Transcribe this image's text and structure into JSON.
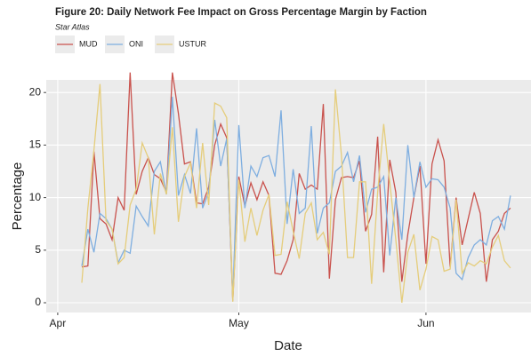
{
  "chart_data": {
    "type": "line",
    "title": "Figure 20: Daily Network Fee Impact on Gross Percentage Margin by Faction",
    "subtitle": "Star Atlas",
    "x_label": "Date",
    "y_label": "Percentage",
    "x": [
      4,
      5,
      6,
      7,
      8,
      9,
      10,
      11,
      12,
      13,
      14,
      15,
      16,
      17,
      18,
      19,
      20,
      21,
      22,
      23,
      24,
      25,
      26,
      27,
      28,
      29,
      30,
      31,
      32,
      33,
      34,
      35,
      36,
      37,
      38,
      39,
      40,
      41,
      42,
      43,
      44,
      45,
      46,
      47,
      48,
      49,
      50,
      51,
      52,
      53,
      54,
      55,
      56,
      57,
      58,
      59,
      60,
      61,
      62,
      63,
      64,
      65,
      66,
      67,
      68,
      69,
      70,
      71,
      72,
      73,
      74,
      75
    ],
    "series": [
      {
        "name": "MUD",
        "color": "#c9524d",
        "values": [
          3.4,
          3.5,
          14.4,
          8,
          7.5,
          6,
          10,
          8.8,
          21.9,
          10.3,
          12.5,
          13.8,
          12.2,
          11.8,
          10.5,
          21.9,
          18,
          13.2,
          13.4,
          9.5,
          9.4,
          11,
          15,
          17,
          15.7,
          0.2,
          12,
          9.2,
          11.4,
          9.8,
          11.5,
          10.2,
          2.8,
          2.7,
          4,
          6,
          12.3,
          10.8,
          11.2,
          10.8,
          18.9,
          2.3,
          9.8,
          11.9,
          12,
          11.9,
          13.5,
          6.8,
          8.4,
          15.8,
          2.9,
          13.6,
          10.5,
          2,
          6.5,
          10,
          13,
          3.7,
          13.2,
          15.5,
          13.5,
          3.4,
          10,
          5.5,
          8,
          10.5,
          8.5,
          2,
          6,
          6.8,
          8.5,
          9
        ]
      },
      {
        "name": "ONI",
        "color": "#7eaee0",
        "values": [
          3.5,
          7,
          4.8,
          8.5,
          8,
          7,
          3.8,
          5,
          4.7,
          9.2,
          8.2,
          7.3,
          12.5,
          13.4,
          10.3,
          19.6,
          10.2,
          12.2,
          10.4,
          16.6,
          9,
          10.5,
          17.4,
          13,
          15.6,
          0.5,
          16.9,
          9,
          13,
          12,
          13.8,
          14,
          12,
          18.3,
          7.5,
          12.7,
          8.5,
          9,
          16.8,
          6.6,
          9,
          9.5,
          12.5,
          13,
          14.3,
          11.5,
          14,
          8.6,
          10.8,
          11,
          12,
          4.5,
          10,
          6,
          15,
          10,
          13.4,
          11,
          11.8,
          11.7,
          11,
          9,
          2.8,
          2.2,
          4.3,
          5.5,
          6,
          5.5,
          7.8,
          8.2,
          7,
          10.2
        ]
      },
      {
        "name": "USTUR",
        "color": "#e5cd7b",
        "values": [
          1.9,
          9,
          14.5,
          20.8,
          7.8,
          7,
          3.7,
          4.3,
          9.3,
          10.8,
          15.2,
          13.8,
          6.5,
          12.3,
          10.3,
          16.7,
          7.7,
          12,
          13.3,
          9,
          15.2,
          9.3,
          19,
          18.7,
          17.6,
          0.1,
          11.7,
          5.8,
          9,
          6.4,
          8.8,
          10.3,
          4.5,
          4.6,
          9.6,
          6.8,
          4.2,
          8.5,
          9.5,
          6,
          6.7,
          4.6,
          20.3,
          14,
          4.3,
          4.3,
          11.5,
          11.5,
          1.8,
          10.5,
          17,
          11.5,
          6,
          0,
          4.8,
          6.5,
          1.2,
          3.2,
          6.3,
          6,
          3,
          3.2,
          9.8,
          2.8,
          3.8,
          3.5,
          4,
          3.7,
          5.3,
          6.4,
          4,
          3.3
        ]
      }
    ],
    "xlim": [
      -1.9,
      78.4
    ],
    "xticks": [
      {
        "value": 0,
        "label": "Apr"
      },
      {
        "value": 30,
        "label": "May"
      },
      {
        "value": 61,
        "label": "Jun"
      }
    ],
    "ylim": [
      -0.93,
      21.2
    ],
    "yticks": [
      0,
      5,
      10,
      15,
      20
    ],
    "grid": true
  }
}
